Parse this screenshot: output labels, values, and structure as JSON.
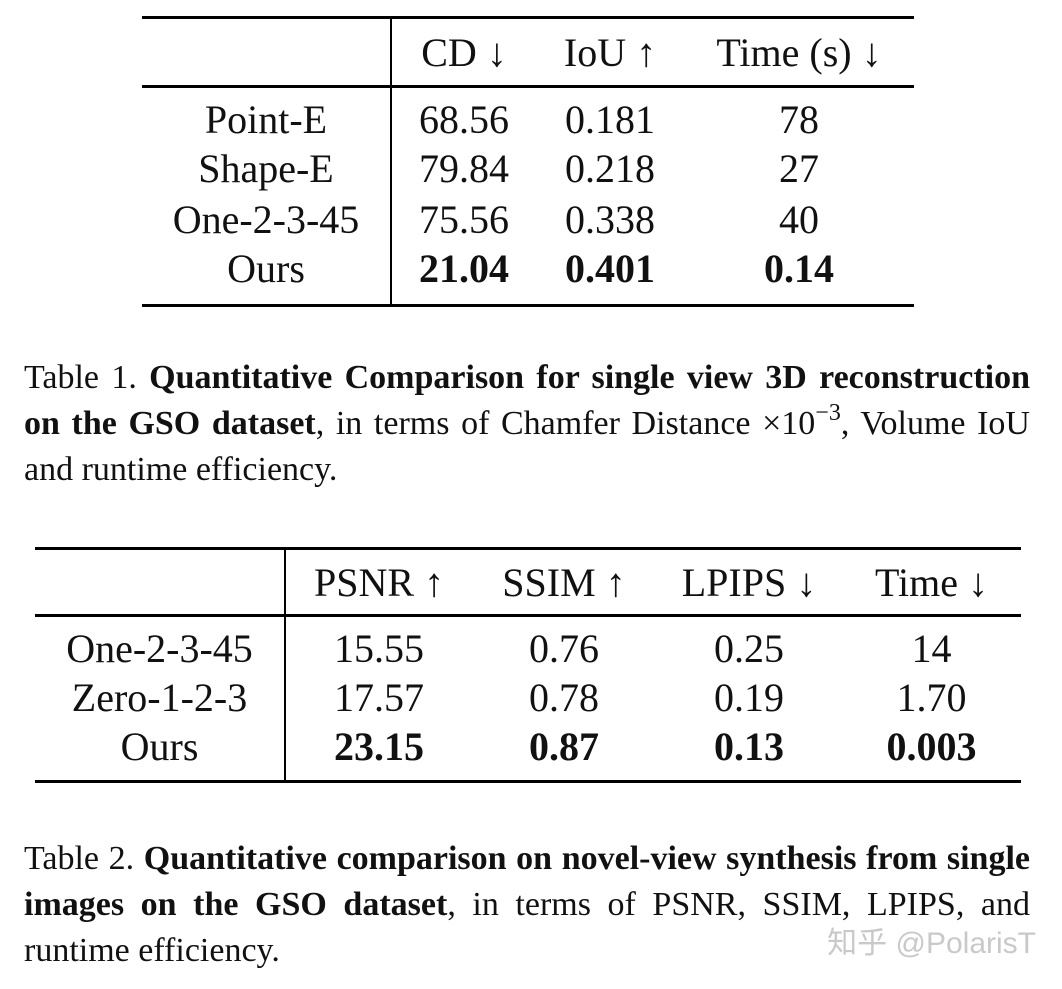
{
  "table1": {
    "headers": [
      "",
      "CD ↓",
      "IoU ↑",
      "Time (s) ↓"
    ],
    "rows": [
      [
        "Point-E",
        "68.56",
        "0.181",
        "78"
      ],
      [
        "Shape-E",
        "79.84",
        "0.218",
        "27"
      ],
      [
        "One-2-3-45",
        "75.56",
        "0.338",
        "40"
      ],
      [
        "Ours",
        "21.04",
        "0.401",
        "0.14"
      ]
    ]
  },
  "caption1": {
    "label": "Table 1.",
    "bold": "Quantitative Comparison for single view 3D reconstruction on the GSO dataset",
    "rest_a": ", in terms of Chamfer Distance ×10",
    "exponent": "−3",
    "rest_b": ", Volume IoU and runtime efficiency."
  },
  "table2": {
    "headers": [
      "",
      "PSNR ↑",
      "SSIM ↑",
      "LPIPS ↓",
      "Time ↓"
    ],
    "rows": [
      [
        "One-2-3-45",
        "15.55",
        "0.76",
        "0.25",
        "14"
      ],
      [
        "Zero-1-2-3",
        "17.57",
        "0.78",
        "0.19",
        "1.70"
      ],
      [
        "Ours",
        "23.15",
        "0.87",
        "0.13",
        "0.003"
      ]
    ]
  },
  "caption2": {
    "label": "Table 2.",
    "bold": "Quantitative comparison on novel-view synthesis from single images on the GSO dataset",
    "rest": ", in terms of PSNR, SSIM, LPIPS, and runtime efficiency."
  },
  "watermark": "知乎 @PolarisT"
}
